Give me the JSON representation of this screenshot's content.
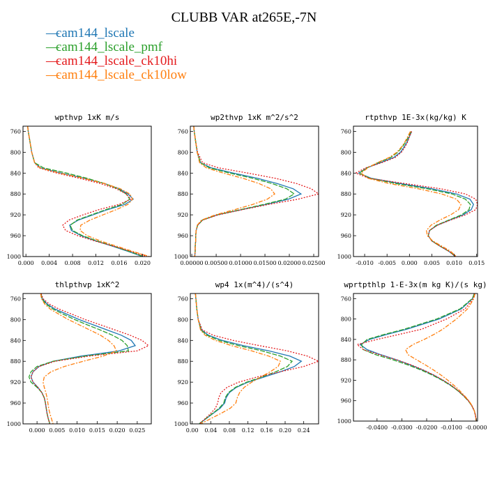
{
  "title": "CLUBB VAR at265E,-7N",
  "legend": [
    {
      "name": "cam144_lscale",
      "color": "#1f77b4",
      "dash": ""
    },
    {
      "name": "cam144_lscale_pmf",
      "color": "#2ca02c",
      "dash": "7,2"
    },
    {
      "name": "cam144_lscale_ck10hi",
      "color": "#e41a1c",
      "dash": "2,2"
    },
    {
      "name": "cam144_lscale_ck10low",
      "color": "#ff7f0e",
      "dash": "6,2,2,2"
    }
  ],
  "chart_data": [
    {
      "type": "line",
      "title": "wpthvp  1xK m/s",
      "xlim": [
        -0.0005,
        0.0215
      ],
      "ylim": [
        1000,
        750
      ],
      "x_ticks": [
        0.0,
        0.004,
        0.008,
        0.012,
        0.016,
        0.02
      ],
      "x_tick_labels": [
        "0.000",
        "0.004",
        "0.008",
        "0.012",
        "0.016",
        "0.020"
      ],
      "y_ticks": [
        760,
        800,
        840,
        880,
        920,
        960,
        1000
      ],
      "y": [
        750,
        760,
        780,
        800,
        820,
        830,
        840,
        850,
        860,
        870,
        880,
        890,
        900,
        910,
        920,
        930,
        940,
        950,
        960,
        970,
        980,
        990,
        1000
      ],
      "series": [
        {
          "values": [
            0.0003,
            0.0004,
            0.0007,
            0.001,
            0.0015,
            0.0025,
            0.006,
            0.01,
            0.0135,
            0.016,
            0.0175,
            0.0184,
            0.017,
            0.014,
            0.0115,
            0.009,
            0.0075,
            0.0078,
            0.0095,
            0.012,
            0.0148,
            0.0175,
            0.02
          ]
        },
        {
          "values": [
            0.0003,
            0.0004,
            0.0007,
            0.001,
            0.0015,
            0.003,
            0.007,
            0.0105,
            0.0135,
            0.0158,
            0.0172,
            0.0178,
            0.0165,
            0.0137,
            0.0112,
            0.0088,
            0.0076,
            0.008,
            0.0097,
            0.0122,
            0.015,
            0.0177,
            0.0202
          ]
        },
        {
          "values": [
            0.0003,
            0.0004,
            0.0007,
            0.001,
            0.0015,
            0.0022,
            0.0053,
            0.0092,
            0.0128,
            0.0155,
            0.0172,
            0.018,
            0.016,
            0.0125,
            0.0098,
            0.0074,
            0.0063,
            0.0068,
            0.0089,
            0.0118,
            0.015,
            0.018,
            0.0208
          ]
        },
        {
          "values": [
            0.0003,
            0.0004,
            0.0007,
            0.001,
            0.0015,
            0.0024,
            0.0058,
            0.0099,
            0.0135,
            0.0162,
            0.0178,
            0.0183,
            0.0175,
            0.0155,
            0.0132,
            0.011,
            0.0094,
            0.0093,
            0.0105,
            0.0128,
            0.0155,
            0.0183,
            0.0212
          ]
        }
      ]
    },
    {
      "type": "line",
      "title": "wp2thvp  1xK m^2/s^2",
      "xlim": [
        -0.0003,
        0.026
      ],
      "ylim": [
        1000,
        750
      ],
      "x_ticks": [
        0.0,
        0.005,
        0.01,
        0.015,
        0.02,
        0.025
      ],
      "x_tick_labels": [
        "0.00000",
        "0.00500",
        "0.01000",
        "0.01500",
        "0.02000",
        "0.02500"
      ],
      "y_ticks": [
        760,
        800,
        840,
        880,
        920,
        960,
        1000
      ],
      "y": [
        750,
        760,
        780,
        800,
        820,
        830,
        840,
        850,
        860,
        870,
        880,
        890,
        900,
        910,
        920,
        930,
        940,
        950,
        960,
        970,
        980,
        990,
        1000
      ],
      "series": [
        {
          "values": [
            0.0004,
            0.0005,
            0.0008,
            0.0011,
            0.0018,
            0.004,
            0.0085,
            0.0135,
            0.0175,
            0.0208,
            0.0224,
            0.0198,
            0.0152,
            0.0102,
            0.0052,
            0.0022,
            0.0012,
            0.0009,
            0.0008,
            0.0008,
            0.0007,
            0.0007,
            0.0006
          ]
        },
        {
          "values": [
            0.0004,
            0.0005,
            0.0008,
            0.0011,
            0.0018,
            0.0036,
            0.0078,
            0.0125,
            0.0165,
            0.0195,
            0.021,
            0.0192,
            0.0148,
            0.01,
            0.0052,
            0.0022,
            0.0012,
            0.0009,
            0.0008,
            0.0008,
            0.0007,
            0.0007,
            0.0006
          ]
        },
        {
          "values": [
            0.0004,
            0.0005,
            0.0008,
            0.0012,
            0.0022,
            0.0055,
            0.0115,
            0.0172,
            0.0215,
            0.0245,
            0.026,
            0.0218,
            0.0158,
            0.0104,
            0.0054,
            0.0022,
            0.0012,
            0.0009,
            0.0008,
            0.0008,
            0.0007,
            0.0007,
            0.0006
          ]
        },
        {
          "values": [
            0.0004,
            0.0005,
            0.0008,
            0.0011,
            0.0016,
            0.003,
            0.0065,
            0.0105,
            0.0138,
            0.0162,
            0.017,
            0.0155,
            0.0125,
            0.0088,
            0.0048,
            0.002,
            0.0011,
            0.0009,
            0.0008,
            0.0008,
            0.0007,
            0.0007,
            0.0006
          ]
        }
      ]
    },
    {
      "type": "line",
      "title": "rtpthvp  1E-3x(kg/kg) K",
      "xlim": [
        -0.0125,
        0.0152
      ],
      "ylim": [
        1000,
        750
      ],
      "x_ticks": [
        -0.01,
        -0.005,
        0.0,
        0.005,
        0.01,
        0.015
      ],
      "x_tick_labels": [
        "-0.010",
        "-0.005",
        "0.000",
        "0.005",
        "0.010",
        "0.015"
      ],
      "y_ticks": [
        760,
        800,
        840,
        880,
        920,
        960,
        1000
      ],
      "y": [
        760,
        770,
        780,
        790,
        800,
        810,
        820,
        830,
        840,
        850,
        860,
        870,
        880,
        890,
        900,
        910,
        920,
        930,
        940,
        950,
        960,
        970,
        980,
        990,
        1000
      ],
      "series": [
        {
          "values": [
            0.0005,
            0.0,
            -0.0005,
            -0.0012,
            -0.002,
            -0.0035,
            -0.0065,
            -0.0095,
            -0.0113,
            -0.0085,
            -0.002,
            0.005,
            0.0105,
            0.0135,
            0.0143,
            0.0138,
            0.012,
            0.009,
            0.0062,
            0.0045,
            0.0042,
            0.005,
            0.0068,
            0.0088,
            0.0103
          ]
        },
        {
          "values": [
            0.0004,
            -0.0002,
            -0.0008,
            -0.0016,
            -0.0026,
            -0.0042,
            -0.007,
            -0.0095,
            -0.0112,
            -0.0088,
            -0.003,
            0.004,
            0.0095,
            0.0125,
            0.0136,
            0.0133,
            0.0116,
            0.0088,
            0.006,
            0.0045,
            0.0042,
            0.005,
            0.0068,
            0.0088,
            0.0103
          ]
        },
        {
          "values": [
            0.0005,
            0.0,
            -0.0004,
            -0.001,
            -0.0018,
            -0.0032,
            -0.0062,
            -0.0098,
            -0.012,
            -0.009,
            -0.001,
            0.007,
            0.0125,
            0.0148,
            0.0152,
            0.0148,
            0.0125,
            0.0092,
            0.0062,
            0.0045,
            0.0042,
            0.005,
            0.0068,
            0.0088,
            0.0103
          ]
        },
        {
          "values": [
            0.0002,
            -0.0004,
            -0.001,
            -0.0018,
            -0.0028,
            -0.0045,
            -0.0072,
            -0.0093,
            -0.0108,
            -0.0092,
            -0.0045,
            0.002,
            0.0072,
            0.0105,
            0.0115,
            0.011,
            0.0092,
            0.0068,
            0.0048,
            0.0038,
            0.004,
            0.0052,
            0.0072,
            0.0092,
            0.0105
          ]
        }
      ]
    },
    {
      "type": "line",
      "title": "thlpthvp  1xK^2",
      "xlim": [
        -0.0035,
        0.0285
      ],
      "ylim": [
        1000,
        750
      ],
      "x_ticks": [
        0.0,
        0.005,
        0.01,
        0.015,
        0.02,
        0.025
      ],
      "x_tick_labels": [
        "0.000",
        "0.005",
        "0.010",
        "0.015",
        "0.020",
        "0.025"
      ],
      "y_ticks": [
        760,
        800,
        840,
        880,
        920,
        960,
        1000
      ],
      "y": [
        750,
        760,
        770,
        780,
        790,
        800,
        810,
        820,
        830,
        840,
        850,
        860,
        870,
        880,
        890,
        900,
        910,
        920,
        930,
        940,
        950,
        960,
        970,
        980,
        990,
        1000
      ],
      "series": [
        {
          "values": [
            0.001,
            0.0013,
            0.0025,
            0.0045,
            0.0075,
            0.0105,
            0.014,
            0.0175,
            0.021,
            0.0235,
            0.0245,
            0.0205,
            0.011,
            0.004,
            0.0005,
            -0.001,
            -0.0015,
            -0.001,
            0.0002,
            0.0012,
            0.0018,
            0.0021,
            0.0023,
            0.0025,
            0.0028,
            0.0032
          ]
        },
        {
          "values": [
            0.001,
            0.0012,
            0.0022,
            0.004,
            0.0066,
            0.0094,
            0.0125,
            0.0158,
            0.0188,
            0.0212,
            0.0225,
            0.0228,
            0.012,
            0.004,
            0.0,
            -0.0015,
            -0.002,
            -0.0015,
            0.0,
            0.0012,
            0.0018,
            0.0021,
            0.0023,
            0.0025,
            0.0028,
            0.0032
          ]
        },
        {
          "values": [
            0.001,
            0.0015,
            0.003,
            0.0055,
            0.0088,
            0.012,
            0.0158,
            0.0195,
            0.0232,
            0.0262,
            0.0278,
            0.025,
            0.013,
            0.0045,
            0.0005,
            -0.001,
            -0.0015,
            -0.001,
            0.0002,
            0.0012,
            0.0018,
            0.0021,
            0.0023,
            0.0025,
            0.0028,
            0.0032
          ]
        },
        {
          "values": [
            0.0009,
            0.0011,
            0.0019,
            0.0033,
            0.0055,
            0.0078,
            0.0105,
            0.0132,
            0.0158,
            0.0178,
            0.0192,
            0.0198,
            0.0165,
            0.0115,
            0.0068,
            0.0035,
            0.0018,
            0.0015,
            0.0018,
            0.0022,
            0.0025,
            0.0027,
            0.0029,
            0.0032,
            0.0036,
            0.004
          ]
        }
      ]
    },
    {
      "type": "line",
      "title": "wp4  1x(m^4)/(s^4)",
      "xlim": [
        -0.004,
        0.272
      ],
      "ylim": [
        1000,
        750
      ],
      "x_ticks": [
        0.0,
        0.04,
        0.08,
        0.12,
        0.16,
        0.2,
        0.24
      ],
      "x_tick_labels": [
        "0.00",
        "0.04",
        "0.08",
        "0.12",
        "0.16",
        "0.20",
        "0.24"
      ],
      "y_ticks": [
        760,
        800,
        840,
        880,
        920,
        960,
        1000
      ],
      "y": [
        750,
        760,
        780,
        800,
        820,
        830,
        840,
        850,
        860,
        870,
        880,
        890,
        900,
        910,
        920,
        930,
        940,
        950,
        960,
        970,
        980,
        990,
        1000
      ],
      "series": [
        {
          "values": [
            0.007,
            0.008,
            0.01,
            0.013,
            0.02,
            0.035,
            0.065,
            0.11,
            0.165,
            0.21,
            0.235,
            0.22,
            0.19,
            0.155,
            0.12,
            0.095,
            0.08,
            0.073,
            0.07,
            0.06,
            0.045,
            0.03,
            0.015
          ]
        },
        {
          "values": [
            0.007,
            0.008,
            0.01,
            0.013,
            0.019,
            0.032,
            0.058,
            0.1,
            0.15,
            0.19,
            0.215,
            0.205,
            0.18,
            0.15,
            0.117,
            0.093,
            0.078,
            0.071,
            0.068,
            0.058,
            0.044,
            0.029,
            0.015
          ]
        },
        {
          "values": [
            0.007,
            0.008,
            0.01,
            0.013,
            0.022,
            0.045,
            0.088,
            0.145,
            0.205,
            0.248,
            0.272,
            0.24,
            0.19,
            0.14,
            0.1,
            0.075,
            0.062,
            0.057,
            0.055,
            0.05,
            0.04,
            0.028,
            0.015
          ]
        },
        {
          "values": [
            0.007,
            0.008,
            0.01,
            0.013,
            0.018,
            0.028,
            0.05,
            0.085,
            0.128,
            0.165,
            0.19,
            0.185,
            0.168,
            0.148,
            0.128,
            0.112,
            0.102,
            0.097,
            0.094,
            0.082,
            0.062,
            0.04,
            0.018
          ]
        }
      ]
    },
    {
      "type": "line",
      "title": "wprtpthlp  1-E-3x(m kg K)/(s kg)",
      "xlim": [
        -0.0495,
        0.0005
      ],
      "ylim": [
        1000,
        750
      ],
      "x_ticks": [
        -0.04,
        -0.03,
        -0.02,
        -0.01,
        0.0
      ],
      "x_tick_labels": [
        "-0.0400",
        "-0.0300",
        "-0.0200",
        "-0.0100",
        "-0.0000"
      ],
      "y_ticks": [
        760,
        800,
        840,
        880,
        920,
        960,
        1000
      ],
      "y": [
        750,
        760,
        780,
        800,
        820,
        830,
        840,
        850,
        860,
        870,
        880,
        890,
        900,
        910,
        920,
        930,
        940,
        950,
        960,
        970,
        980,
        990,
        1000
      ],
      "series": [
        {
          "values": [
            -0.0008,
            -0.0015,
            -0.006,
            -0.015,
            -0.028,
            -0.036,
            -0.043,
            -0.0468,
            -0.044,
            -0.0385,
            -0.032,
            -0.0265,
            -0.0215,
            -0.0172,
            -0.0135,
            -0.0102,
            -0.0075,
            -0.0052,
            -0.0032,
            -0.0018,
            -0.0008,
            -0.0003,
            0.0
          ]
        },
        {
          "values": [
            -0.0008,
            -0.0016,
            -0.0065,
            -0.016,
            -0.029,
            -0.037,
            -0.044,
            -0.0462,
            -0.0455,
            -0.0405,
            -0.0335,
            -0.0275,
            -0.0222,
            -0.0177,
            -0.0138,
            -0.0104,
            -0.0076,
            -0.0053,
            -0.0033,
            -0.0018,
            -0.0008,
            -0.0003,
            0.0
          ]
        },
        {
          "values": [
            -0.0007,
            -0.0012,
            -0.0045,
            -0.012,
            -0.022,
            -0.031,
            -0.04,
            -0.048,
            -0.0455,
            -0.039,
            -0.032,
            -0.0262,
            -0.0212,
            -0.017,
            -0.0133,
            -0.01,
            -0.0074,
            -0.0052,
            -0.0032,
            -0.0018,
            -0.0008,
            -0.0003,
            0.0
          ]
        },
        {
          "values": [
            -0.0005,
            -0.001,
            -0.0035,
            -0.008,
            -0.0135,
            -0.017,
            -0.021,
            -0.0255,
            -0.0285,
            -0.0275,
            -0.024,
            -0.0205,
            -0.0172,
            -0.0142,
            -0.0115,
            -0.009,
            -0.0068,
            -0.0048,
            -0.003,
            -0.0017,
            -0.0008,
            -0.0003,
            0.0
          ]
        }
      ]
    }
  ]
}
